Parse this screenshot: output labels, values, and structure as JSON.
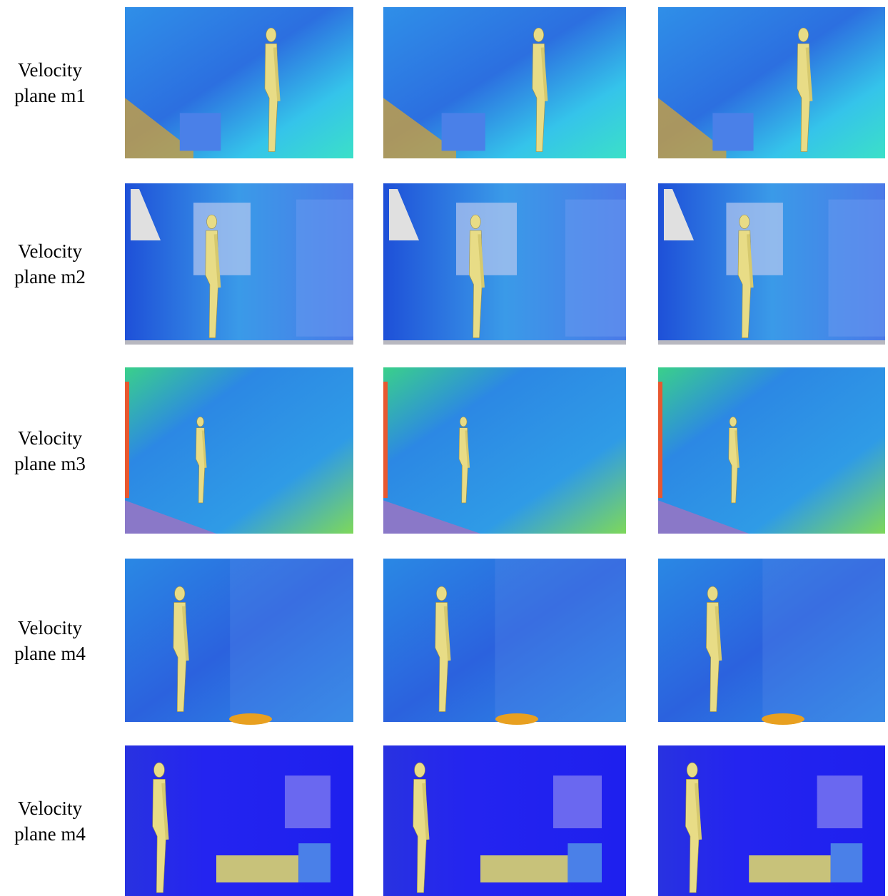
{
  "rows": [
    {
      "label": [
        "Velocity",
        "plane m1"
      ]
    },
    {
      "label": [
        "Velocity",
        "plane m2"
      ]
    },
    {
      "label": [
        "Velocity",
        "plane m3"
      ]
    },
    {
      "label": [
        "Velocity",
        "plane m4"
      ]
    },
    {
      "label": [
        "Velocity",
        "plane m4"
      ]
    }
  ]
}
